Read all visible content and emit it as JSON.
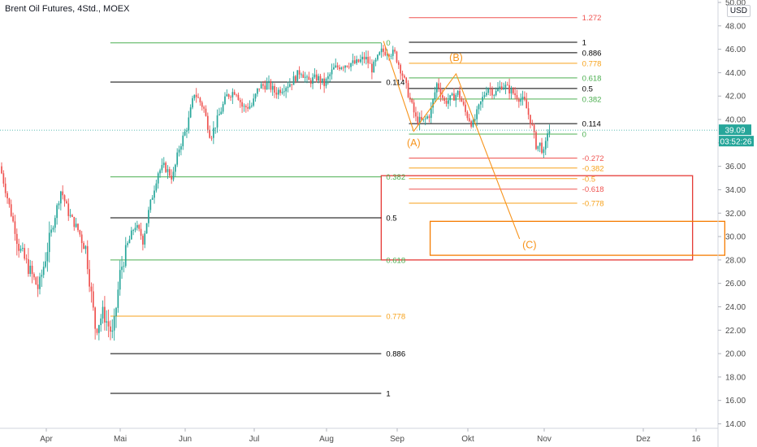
{
  "header": {
    "title": "Brent Oil Futures, 4Std., MOEX",
    "currency": "USD"
  },
  "price_tags": {
    "last_price": "39.09",
    "countdown": "03:52:26",
    "color": "#26a69a"
  },
  "chart_data": {
    "type": "candlestick",
    "ylim": [
      14,
      50
    ],
    "y_ticks": [
      "50.00",
      "48.00",
      "46.00",
      "44.00",
      "42.00",
      "40.00",
      "38.00",
      "36.00",
      "34.00",
      "32.00",
      "30.00",
      "28.00",
      "26.00",
      "24.00",
      "22.00",
      "20.00",
      "18.00",
      "16.00",
      "14.00"
    ],
    "x_ticks": [
      "Apr",
      "Mai",
      "Jun",
      "Jul",
      "Aug",
      "Sep",
      "Okt",
      "Nov",
      "Dez",
      "16"
    ],
    "colors": {
      "up": "#26a69a",
      "down": "#ef5350"
    },
    "price_path": [
      {
        "date": "2020-03-20",
        "price": 36.0
      },
      {
        "date": "2020-03-25",
        "price": 29.0
      },
      {
        "date": "2020-03-30",
        "price": 25.5
      },
      {
        "date": "2020-04-02",
        "price": 29.5
      },
      {
        "date": "2020-04-07",
        "price": 34.0
      },
      {
        "date": "2020-04-10",
        "price": 32.0
      },
      {
        "date": "2020-04-14",
        "price": 30.5
      },
      {
        "date": "2020-04-17",
        "price": 29.0
      },
      {
        "date": "2020-04-21",
        "price": 22.0
      },
      {
        "date": "2020-04-24",
        "price": 23.5
      },
      {
        "date": "2020-04-28",
        "price": 21.5
      },
      {
        "date": "2020-05-01",
        "price": 27.0
      },
      {
        "date": "2020-05-05",
        "price": 29.5
      },
      {
        "date": "2020-05-08",
        "price": 31.0
      },
      {
        "date": "2020-05-12",
        "price": 29.8
      },
      {
        "date": "2020-05-15",
        "price": 32.5
      },
      {
        "date": "2020-05-19",
        "price": 35.5
      },
      {
        "date": "2020-05-22",
        "price": 36.0
      },
      {
        "date": "2020-05-26",
        "price": 35.0
      },
      {
        "date": "2020-05-29",
        "price": 37.5
      },
      {
        "date": "2020-06-02",
        "price": 39.5
      },
      {
        "date": "2020-06-05",
        "price": 42.3
      },
      {
        "date": "2020-06-09",
        "price": 41.0
      },
      {
        "date": "2020-06-12",
        "price": 38.5
      },
      {
        "date": "2020-06-16",
        "price": 40.5
      },
      {
        "date": "2020-06-19",
        "price": 42.0
      },
      {
        "date": "2020-06-23",
        "price": 42.5
      },
      {
        "date": "2020-06-26",
        "price": 41.0
      },
      {
        "date": "2020-06-30",
        "price": 41.2
      },
      {
        "date": "2020-07-03",
        "price": 42.8
      },
      {
        "date": "2020-07-07",
        "price": 43.0
      },
      {
        "date": "2020-07-10",
        "price": 42.3
      },
      {
        "date": "2020-07-14",
        "price": 42.8
      },
      {
        "date": "2020-07-17",
        "price": 43.2
      },
      {
        "date": "2020-07-21",
        "price": 44.2
      },
      {
        "date": "2020-07-24",
        "price": 43.2
      },
      {
        "date": "2020-07-28",
        "price": 43.6
      },
      {
        "date": "2020-07-31",
        "price": 43.0
      },
      {
        "date": "2020-08-04",
        "price": 44.3
      },
      {
        "date": "2020-08-07",
        "price": 44.6
      },
      {
        "date": "2020-08-11",
        "price": 44.8
      },
      {
        "date": "2020-08-14",
        "price": 44.8
      },
      {
        "date": "2020-08-18",
        "price": 45.3
      },
      {
        "date": "2020-08-21",
        "price": 44.3
      },
      {
        "date": "2020-08-25",
        "price": 45.8
      },
      {
        "date": "2020-08-28",
        "price": 45.8
      },
      {
        "date": "2020-08-31",
        "price": 45.6
      },
      {
        "date": "2020-09-03",
        "price": 44.0
      },
      {
        "date": "2020-09-06",
        "price": 42.0
      },
      {
        "date": "2020-09-09",
        "price": 40.0
      },
      {
        "date": "2020-09-12",
        "price": 39.8
      },
      {
        "date": "2020-09-15",
        "price": 40.5
      },
      {
        "date": "2020-09-18",
        "price": 43.2
      },
      {
        "date": "2020-09-21",
        "price": 41.5
      },
      {
        "date": "2020-09-24",
        "price": 41.8
      },
      {
        "date": "2020-09-27",
        "price": 42.3
      },
      {
        "date": "2020-09-30",
        "price": 40.6
      },
      {
        "date": "2020-10-03",
        "price": 39.5
      },
      {
        "date": "2020-10-06",
        "price": 41.3
      },
      {
        "date": "2020-10-09",
        "price": 42.8
      },
      {
        "date": "2020-10-12",
        "price": 42.2
      },
      {
        "date": "2020-10-15",
        "price": 43.0
      },
      {
        "date": "2020-10-18",
        "price": 42.5
      },
      {
        "date": "2020-10-21",
        "price": 42.0
      },
      {
        "date": "2020-10-24",
        "price": 41.5
      },
      {
        "date": "2020-10-27",
        "price": 39.5
      },
      {
        "date": "2020-10-29",
        "price": 37.5
      },
      {
        "date": "2020-10-30",
        "price": 38.0
      },
      {
        "date": "2020-11-01",
        "price": 37.0
      },
      {
        "date": "2020-11-02",
        "price": 39.0
      },
      {
        "date": "2020-11-03",
        "price": 39.09
      }
    ],
    "fib_sets": [
      {
        "name": "left",
        "color_default": "#000000",
        "levels": [
          {
            "label": "0",
            "price": 46.55,
            "color": "#4caf50",
            "x_from": "2020-04-27",
            "x_to": "2020-08-25"
          },
          {
            "label": "0.114",
            "price": 43.2,
            "color": "#000000",
            "x_from": "2020-04-27",
            "x_to": "2020-08-25"
          },
          {
            "label": "0.382",
            "price": 35.1,
            "color": "#4caf50",
            "x_from": "2020-04-27",
            "x_to": "2020-08-25"
          },
          {
            "label": "0.5",
            "price": 31.6,
            "color": "#000000",
            "x_from": "2020-04-27",
            "x_to": "2020-08-25"
          },
          {
            "label": "0.618",
            "price": 28.0,
            "color": "#4caf50",
            "x_from": "2020-04-27",
            "x_to": "2020-08-25"
          },
          {
            "label": "0.778",
            "price": 23.2,
            "color": "#f7a21b",
            "x_from": "2020-04-27",
            "x_to": "2020-08-25"
          },
          {
            "label": "0.886",
            "price": 20.0,
            "color": "#000000",
            "x_from": "2020-04-27",
            "x_to": "2020-08-25"
          },
          {
            "label": "1",
            "price": 16.6,
            "color": "#000000",
            "x_from": "2020-04-27",
            "x_to": "2020-08-25"
          }
        ]
      },
      {
        "name": "right",
        "levels": [
          {
            "label": "1.272",
            "price": 48.7,
            "color": "#ef5350"
          },
          {
            "label": "1",
            "price": 46.6,
            "color": "#000000"
          },
          {
            "label": "0.886",
            "price": 45.7,
            "color": "#000000"
          },
          {
            "label": "0.778",
            "price": 44.8,
            "color": "#f7a21b"
          },
          {
            "label": "0.618",
            "price": 43.55,
            "color": "#4caf50"
          },
          {
            "label": "0.5",
            "price": 42.65,
            "color": "#000000"
          },
          {
            "label": "0.382",
            "price": 41.75,
            "color": "#4caf50"
          },
          {
            "label": "0.114",
            "price": 39.65,
            "color": "#000000"
          },
          {
            "label": "0",
            "price": 38.75,
            "color": "#4caf50"
          },
          {
            "label": "-0.272",
            "price": 36.7,
            "color": "#ef5350"
          },
          {
            "label": "-0.382",
            "price": 35.85,
            "color": "#f7a21b"
          },
          {
            "label": "-0.5",
            "price": 34.95,
            "color": "#f7a21b"
          },
          {
            "label": "-0.618",
            "price": 34.05,
            "color": "#ef5350"
          },
          {
            "label": "-0.778",
            "price": 32.85,
            "color": "#f7a21b"
          }
        ]
      }
    ],
    "wave_labels": [
      {
        "label": "(A)",
        "date": "2020-09-08",
        "price": 37.7
      },
      {
        "label": "(B)",
        "date": "2020-09-26",
        "price": 45.0
      },
      {
        "label": "(C)",
        "date": "2020-10-26",
        "price": 29.0
      }
    ],
    "wave_path": [
      {
        "date": "2020-08-26",
        "price": 46.7
      },
      {
        "date": "2020-09-08",
        "price": 39.0
      },
      {
        "date": "2020-09-26",
        "price": 43.9
      },
      {
        "date": "2020-10-22",
        "price": 29.8
      }
    ],
    "zones": [
      {
        "name": "red-zone",
        "color": "#e53935",
        "from_date": "2020-08-25",
        "to_date": "2020-12-15",
        "price_top": 35.2,
        "price_bottom": 28.0
      },
      {
        "name": "orange-zone",
        "color": "#f57c00",
        "from_date": "2020-09-15",
        "to_date": "2020-12-26",
        "price_top": 31.3,
        "price_bottom": 28.4
      }
    ],
    "last_price": 39.09
  }
}
